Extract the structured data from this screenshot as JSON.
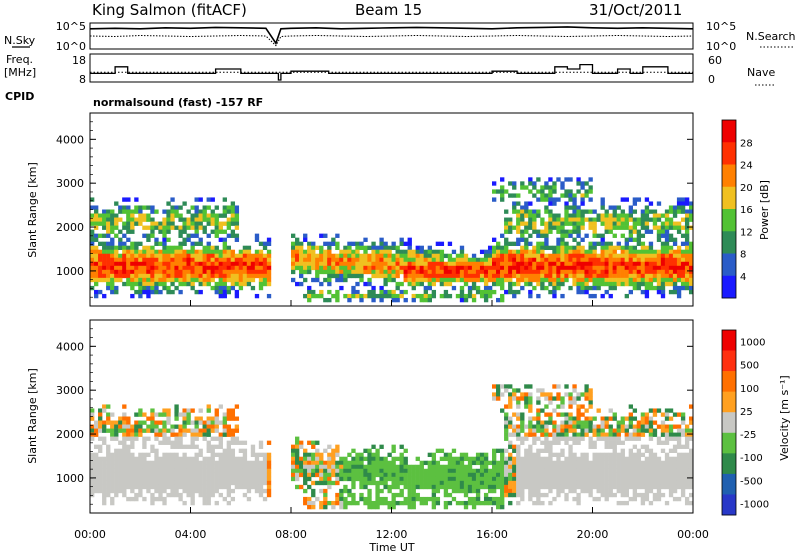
{
  "header": {
    "station": "King Salmon (fitACF)",
    "beam": "Beam 15",
    "date": "31/Oct/2011"
  },
  "chart_data": [
    {
      "type": "line",
      "panel": "noise",
      "left_label": "N.Sky",
      "right_label": "N.Search",
      "left_ticks": [
        "10^5",
        "10^0"
      ],
      "right_ticks": [
        "10^5",
        "10^0"
      ],
      "x": [
        0,
        1,
        2,
        3,
        4,
        5,
        6,
        7,
        7.4,
        7.6,
        8,
        9,
        10,
        11,
        12,
        13,
        14,
        15,
        16,
        17,
        18,
        19,
        20,
        21,
        22,
        23,
        24
      ],
      "series": [
        {
          "values": [
            4.0,
            4.1,
            4.0,
            4.2,
            4.1,
            4.3,
            4.2,
            4.1,
            1.0,
            4.0,
            4.1,
            4.2,
            4.0,
            4.1,
            4.2,
            4.3,
            4.2,
            4.1,
            4.0,
            4.2,
            4.3,
            4.4,
            4.2,
            4.1,
            4.2,
            4.1,
            4.0
          ],
          "style": "solid"
        },
        {
          "values": [
            2.5,
            2.4,
            2.6,
            2.5,
            2.4,
            2.5,
            2.6,
            2.5,
            0.5,
            2.4,
            2.5,
            2.6,
            2.5,
            2.4,
            2.5,
            2.6,
            2.5,
            2.4,
            2.5,
            2.6,
            2.5,
            2.4,
            2.5,
            2.6,
            2.5,
            2.4,
            2.5
          ],
          "style": "dotted"
        }
      ]
    },
    {
      "type": "line",
      "panel": "frequency",
      "left_label_1": "Freq.",
      "left_label_2": "[MHz]",
      "right_label": "Nave",
      "left_ticks": [
        "18",
        "8"
      ],
      "right_ticks": [
        "60",
        "0"
      ],
      "cpid_label": "CPID",
      "cpid_text": "normalsound (fast) -157 RF",
      "steps": [
        [
          0,
          1,
          11
        ],
        [
          1,
          1.5,
          14
        ],
        [
          1.5,
          5,
          11
        ],
        [
          5,
          6,
          13
        ],
        [
          6,
          7.5,
          11
        ],
        [
          7.5,
          7.6,
          8
        ],
        [
          7.6,
          8,
          11
        ],
        [
          8,
          9.5,
          12
        ],
        [
          9.5,
          16,
          11
        ],
        [
          16,
          17,
          12
        ],
        [
          17,
          18.5,
          11
        ],
        [
          18.5,
          19,
          14
        ],
        [
          19,
          19.5,
          13
        ],
        [
          19.5,
          20,
          15
        ],
        [
          20,
          21,
          11
        ],
        [
          21,
          21.5,
          13
        ],
        [
          21.5,
          22,
          11
        ],
        [
          22,
          23,
          14
        ],
        [
          23,
          24,
          11
        ]
      ],
      "nave_level": 0.35
    },
    {
      "type": "heatmap",
      "panel": "power",
      "ylabel": "Slant Range [km]",
      "yticks": [
        1000,
        2000,
        3000,
        4000
      ],
      "ylim": [
        200,
        4600
      ],
      "colorbar_label": "Power [dB]",
      "colorbar_ticks": [
        "4",
        "8",
        "12",
        "16",
        "20",
        "24",
        "28"
      ],
      "colors": [
        "#1a1aff",
        "#2a5cc8",
        "#2e8b57",
        "#52c234",
        "#f0c020",
        "#ff8000",
        "#ff3000",
        "#ee0000"
      ]
    },
    {
      "type": "heatmap",
      "panel": "velocity",
      "ylabel": "Slant Range [km]",
      "yticks": [
        1000,
        2000,
        3000,
        4000
      ],
      "ylim": [
        200,
        4600
      ],
      "colorbar_label": "Velocity [m s⁻¹]",
      "colorbar_ticks": [
        "1000",
        "500",
        "100",
        "25",
        "-25",
        "-100",
        "-500",
        "-1000"
      ],
      "colors": [
        "#2838c8",
        "#2060b0",
        "#2f8a4a",
        "#5cc040",
        "#c8c8c4",
        "#ffa020",
        "#ff7000",
        "#ff3010",
        "#ee0000"
      ]
    },
    {
      "type": "axis",
      "xlabel": "Time UT",
      "xticks": [
        "00:00",
        "04:00",
        "08:00",
        "12:00",
        "16:00",
        "20:00",
        "00:00"
      ]
    }
  ]
}
